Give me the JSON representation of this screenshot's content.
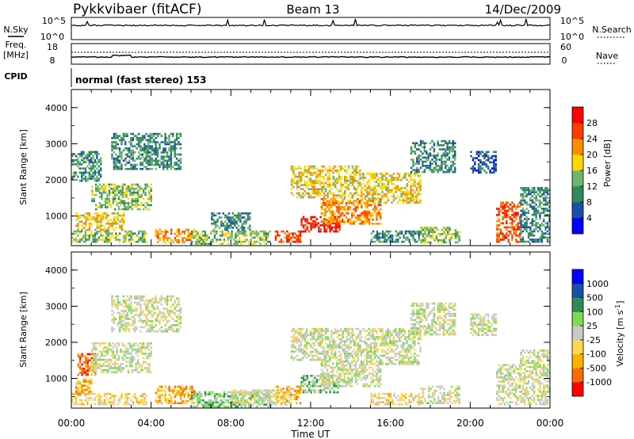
{
  "header": {
    "station": "Pykkvibaer (fitACF)",
    "beam": "Beam 13",
    "date": "14/Dec/2009"
  },
  "nsky_panel": {
    "left_label": "N.Sky",
    "right_label": "N.Search",
    "left_ticks": [
      "10^5",
      "10^0"
    ],
    "right_ticks": [
      "10^5",
      "10^0"
    ]
  },
  "freq_panel": {
    "left_label_line1": "Freq.",
    "left_label_line2": "[MHz]",
    "left_ticks": [
      "18",
      "8"
    ],
    "right_label": "Nave",
    "right_ticks": [
      "60",
      "0"
    ]
  },
  "cpid": {
    "label": "CPID",
    "mode": "normal (fast stereo) 153"
  },
  "axes": {
    "ylabel": "Slant Range [km]",
    "yticks": [
      "4000",
      "3000",
      "2000",
      "1000"
    ],
    "xticks": [
      "00:00",
      "04:00",
      "08:00",
      "12:00",
      "16:00",
      "20:00",
      "00:00"
    ],
    "xlabel": "Time UT"
  },
  "chart_data": [
    {
      "type": "heatmap",
      "name": "power",
      "colorbar_label": "Power [dB]",
      "colorbar_ticks": [
        "28",
        "24",
        "20",
        "16",
        "12",
        "8",
        "4"
      ],
      "colors": [
        "#0000ff",
        "#1a4fa8",
        "#2e8b57",
        "#6db56d",
        "#ffd700",
        "#ff8c00",
        "#ff3c00",
        "#ff0000"
      ],
      "x_unit": "hours UT",
      "y_unit": "km",
      "xlim": [
        0,
        24
      ],
      "ylim": [
        180,
        4500
      ],
      "regions": [
        {
          "x": [
            0.0,
            3.8
          ],
          "y": [
            300,
            600
          ],
          "level": 3
        },
        {
          "x": [
            0.2,
            2.6
          ],
          "y": [
            600,
            1100
          ],
          "level": 4
        },
        {
          "x": [
            1.0,
            4.0
          ],
          "y": [
            1200,
            1900
          ],
          "level": 3
        },
        {
          "x": [
            0.0,
            1.5
          ],
          "y": [
            2000,
            2800
          ],
          "level": 2
        },
        {
          "x": [
            2.0,
            5.5
          ],
          "y": [
            2300,
            3300
          ],
          "level": 2
        },
        {
          "x": [
            4.2,
            6.2
          ],
          "y": [
            300,
            650
          ],
          "level": 5
        },
        {
          "x": [
            6.0,
            10.0
          ],
          "y": [
            250,
            600
          ],
          "level": 3
        },
        {
          "x": [
            7.0,
            9.0
          ],
          "y": [
            600,
            1100
          ],
          "level": 2
        },
        {
          "x": [
            10.2,
            11.5
          ],
          "y": [
            300,
            600
          ],
          "level": 6
        },
        {
          "x": [
            11.5,
            13.5
          ],
          "y": [
            600,
            1000
          ],
          "level": 7
        },
        {
          "x": [
            12.5,
            15.5
          ],
          "y": [
            800,
            1500
          ],
          "level": 5
        },
        {
          "x": [
            11.0,
            14.5
          ],
          "y": [
            1500,
            2400
          ],
          "level": 4
        },
        {
          "x": [
            14.5,
            17.5
          ],
          "y": [
            1400,
            2200
          ],
          "level": 4
        },
        {
          "x": [
            17.0,
            19.2
          ],
          "y": [
            2200,
            3100
          ],
          "level": 2
        },
        {
          "x": [
            15.0,
            17.5
          ],
          "y": [
            300,
            600
          ],
          "level": 2
        },
        {
          "x": [
            17.5,
            19.5
          ],
          "y": [
            300,
            700
          ],
          "level": 3
        },
        {
          "x": [
            20.0,
            21.3
          ],
          "y": [
            2200,
            2800
          ],
          "level": 1
        },
        {
          "x": [
            21.3,
            22.5
          ],
          "y": [
            300,
            1400
          ],
          "level": 6
        },
        {
          "x": [
            22.5,
            24.0
          ],
          "y": [
            300,
            1800
          ],
          "level": 2
        }
      ]
    },
    {
      "type": "heatmap",
      "name": "velocity",
      "colorbar_label": "Velocity [m s^-1]",
      "colorbar_ticks": [
        "1000",
        "500",
        "100",
        "25",
        "-25",
        "-100",
        "-500",
        "-1000"
      ],
      "colors": [
        "#ff0000",
        "#ff6a00",
        "#ffb000",
        "#ffd84d",
        "#c8c8c8",
        "#7ed957",
        "#2e8b57",
        "#1a4fa8",
        "#0000ff"
      ],
      "x_unit": "hours UT",
      "y_unit": "km",
      "xlim": [
        0,
        24
      ],
      "ylim": [
        180,
        4500
      ],
      "regions": [
        {
          "x": [
            0.0,
            3.8
          ],
          "y": [
            300,
            600
          ],
          "level": 3
        },
        {
          "x": [
            0.3,
            1.2
          ],
          "y": [
            1100,
            1700
          ],
          "level": 1
        },
        {
          "x": [
            0.2,
            1.0
          ],
          "y": [
            600,
            1000
          ],
          "level": 2
        },
        {
          "x": [
            1.0,
            4.0
          ],
          "y": [
            1200,
            2000
          ],
          "level": 4
        },
        {
          "x": [
            2.0,
            5.5
          ],
          "y": [
            2300,
            3300
          ],
          "level": 4
        },
        {
          "x": [
            4.2,
            6.2
          ],
          "y": [
            300,
            800
          ],
          "level": 2
        },
        {
          "x": [
            6.0,
            10.0
          ],
          "y": [
            250,
            650
          ],
          "level": 5
        },
        {
          "x": [
            8.0,
            11.0
          ],
          "y": [
            300,
            700
          ],
          "level": 4
        },
        {
          "x": [
            10.2,
            11.5
          ],
          "y": [
            300,
            800
          ],
          "level": 2
        },
        {
          "x": [
            11.5,
            13.5
          ],
          "y": [
            600,
            1100
          ],
          "level": 5
        },
        {
          "x": [
            12.5,
            15.5
          ],
          "y": [
            800,
            1500
          ],
          "level": 4
        },
        {
          "x": [
            11.0,
            14.5
          ],
          "y": [
            1500,
            2400
          ],
          "level": 4
        },
        {
          "x": [
            14.5,
            17.5
          ],
          "y": [
            1400,
            2400
          ],
          "level": 4
        },
        {
          "x": [
            17.0,
            19.2
          ],
          "y": [
            2200,
            3100
          ],
          "level": 4
        },
        {
          "x": [
            15.0,
            17.5
          ],
          "y": [
            300,
            600
          ],
          "level": 3
        },
        {
          "x": [
            17.5,
            19.5
          ],
          "y": [
            300,
            800
          ],
          "level": 4
        },
        {
          "x": [
            20.0,
            21.3
          ],
          "y": [
            2200,
            2800
          ],
          "level": 4
        },
        {
          "x": [
            21.3,
            22.5
          ],
          "y": [
            300,
            1400
          ],
          "level": 4
        },
        {
          "x": [
            22.5,
            24.0
          ],
          "y": [
            300,
            1800
          ],
          "level": 4
        }
      ]
    }
  ]
}
